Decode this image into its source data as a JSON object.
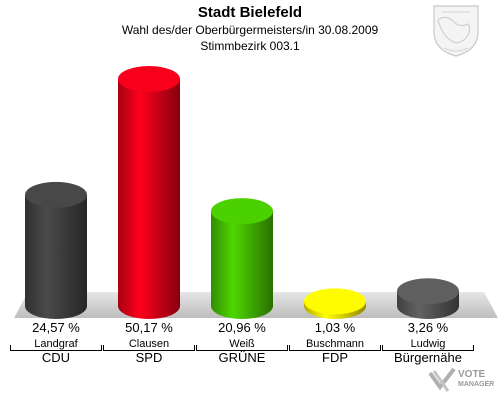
{
  "header": {
    "title": "Stadt Bielefeld",
    "subtitle": "Wahl des/der Oberbürgermeisters/in 30.08.2009",
    "district": "Stimmbezirk 003.1"
  },
  "watermark": {
    "line1": "VOTE",
    "line2": "MANAGER"
  },
  "colors": {
    "CDU": "#404040",
    "SPD": "#dd0018",
    "GRÜNE": "#44bb00",
    "FDP": "#f5e100",
    "Bürgernähe": "#555555",
    "floor": "#cccccc"
  },
  "chart_data": {
    "type": "bar",
    "title": "Stadt Bielefeld",
    "categories": [
      "CDU",
      "SPD",
      "GRÜNE",
      "FDP",
      "Bürgernähe"
    ],
    "candidates": [
      "Landgraf",
      "Clausen",
      "Weiß",
      "Buschmann",
      "Ludwig"
    ],
    "values": [
      24.57,
      50.17,
      20.96,
      1.03,
      3.26
    ],
    "value_labels": [
      "24,57 %",
      "50,17 %",
      "20,96 %",
      "1,03 %",
      "3,26 %"
    ],
    "ylim": [
      0,
      50.17
    ]
  }
}
